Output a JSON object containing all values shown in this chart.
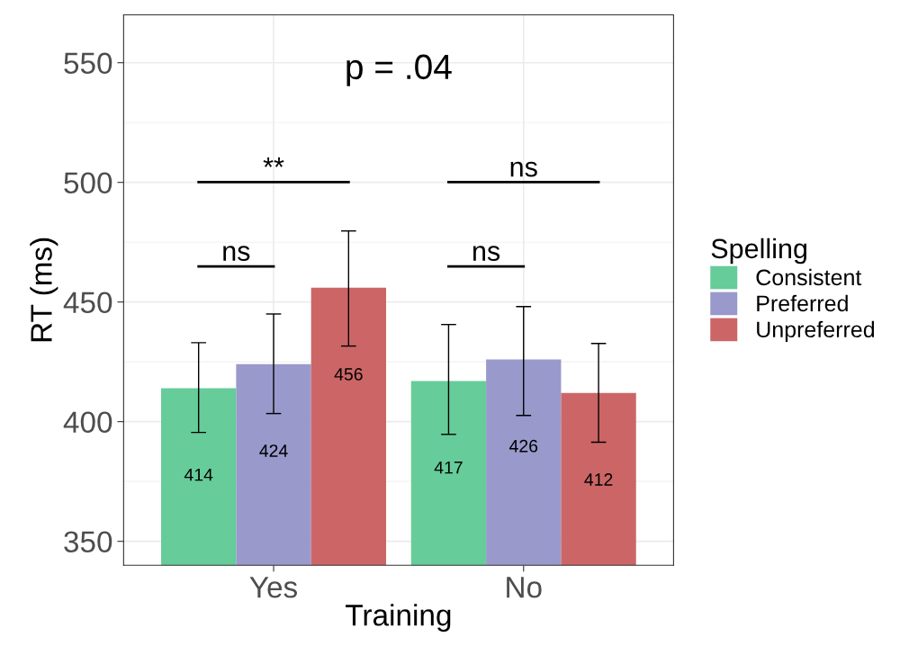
{
  "chart_data": {
    "type": "bar",
    "xlabel": "Training",
    "ylabel": "RT (ms)",
    "legend_title": "Spelling",
    "categories": [
      "Yes",
      "No"
    ],
    "series": [
      {
        "name": "Consistent",
        "color": "#66cc99",
        "values": [
          414,
          417
        ],
        "errors": [
          [
            395.5,
            433
          ],
          [
            394.7,
            440.6
          ]
        ]
      },
      {
        "name": "Preferred",
        "color": "#9999cc",
        "values": [
          424,
          426
        ],
        "errors": [
          [
            403.4,
            445
          ],
          [
            402.6,
            448.1
          ]
        ]
      },
      {
        "name": "Unpreferred",
        "color": "#cc6666",
        "values": [
          456,
          412
        ],
        "errors": [
          [
            431.6,
            479.7
          ],
          [
            391.4,
            432.7
          ]
        ]
      }
    ],
    "ylim": [
      340,
      570
    ],
    "yticks": [
      350,
      400,
      450,
      500,
      550
    ],
    "grid": true,
    "legend": "right",
    "data_labels": true,
    "annotations": [
      "p = .04",
      "**",
      "ns",
      "ns",
      "ns"
    ]
  }
}
